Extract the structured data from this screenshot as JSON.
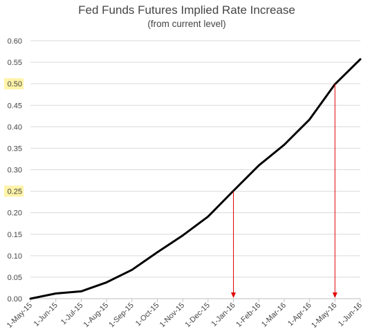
{
  "chart_data": {
    "type": "line",
    "title": "Fed Funds Futures Implied Rate Increase",
    "subtitle": "(from current level)",
    "xlabel": "",
    "ylabel": "",
    "categories": [
      "1-May-15",
      "1-Jun-15",
      "1-Jul-15",
      "1-Aug-15",
      "1-Sep-15",
      "1-Oct-15",
      "1-Nov-15",
      "1-Dec-15",
      "1-Jan-16",
      "1-Feb-16",
      "1-Mar-16",
      "1-Apr-16",
      "1-May-16",
      "1-Jun-16"
    ],
    "yticks": [
      "0.00",
      "0.05",
      "0.10",
      "0.15",
      "0.20",
      "0.25",
      "0.30",
      "0.35",
      "0.40",
      "0.45",
      "0.50",
      "0.55",
      "0.60"
    ],
    "ylim": [
      0,
      0.6
    ],
    "grid": "horizontal",
    "legend": "none",
    "series": [
      {
        "color": "#000000",
        "values": [
          0.0,
          0.012,
          0.017,
          0.038,
          0.067,
          0.108,
          0.147,
          0.191,
          0.251,
          0.31,
          0.358,
          0.417,
          0.499,
          0.557
        ]
      }
    ],
    "highlighted_yticks": [
      "0.25",
      "0.50"
    ],
    "highlight_color": "#fff3a8",
    "annotations": [
      {
        "type": "arrow",
        "x": "1-Jan-16",
        "from_y": 0.25,
        "to_y": 0.0,
        "color": "#e00000"
      },
      {
        "type": "arrow",
        "x": "1-May-16",
        "from_y": 0.5,
        "to_y": 0.0,
        "color": "#e00000"
      }
    ]
  }
}
